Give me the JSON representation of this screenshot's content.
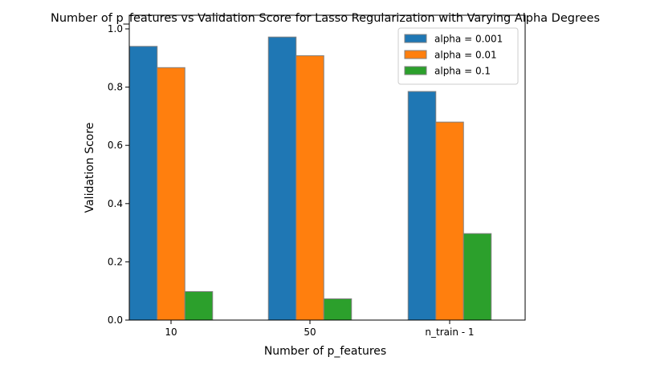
{
  "chart_data": {
    "type": "bar",
    "title": "Number of p_features vs Validation Score for Lasso Regularization with Varying Alpha Degrees",
    "xlabel": "Number of p_features",
    "ylabel": "Validation Score",
    "categories": [
      "10",
      "50",
      "n_train - 1"
    ],
    "ylim": [
      0,
      1.0
    ],
    "yticks": [
      0.0,
      0.2,
      0.4,
      0.6,
      0.8,
      1.0
    ],
    "ytick_labels": [
      "0.0",
      "0.2",
      "0.4",
      "0.6",
      "0.8",
      "1.0"
    ],
    "series": [
      {
        "name": "alpha = 0.001",
        "color": "#1f77b4",
        "values": [
          0.94,
          0.972,
          0.785
        ]
      },
      {
        "name": "alpha = 0.01",
        "color": "#ff7f0e",
        "values": [
          0.867,
          0.908,
          0.68
        ]
      },
      {
        "name": "alpha = 0.1",
        "color": "#2ca02c",
        "values": [
          0.098,
          0.073,
          0.297
        ]
      }
    ],
    "bar_edge_color": "#808080",
    "grid": false,
    "legend_position": "top-right"
  }
}
